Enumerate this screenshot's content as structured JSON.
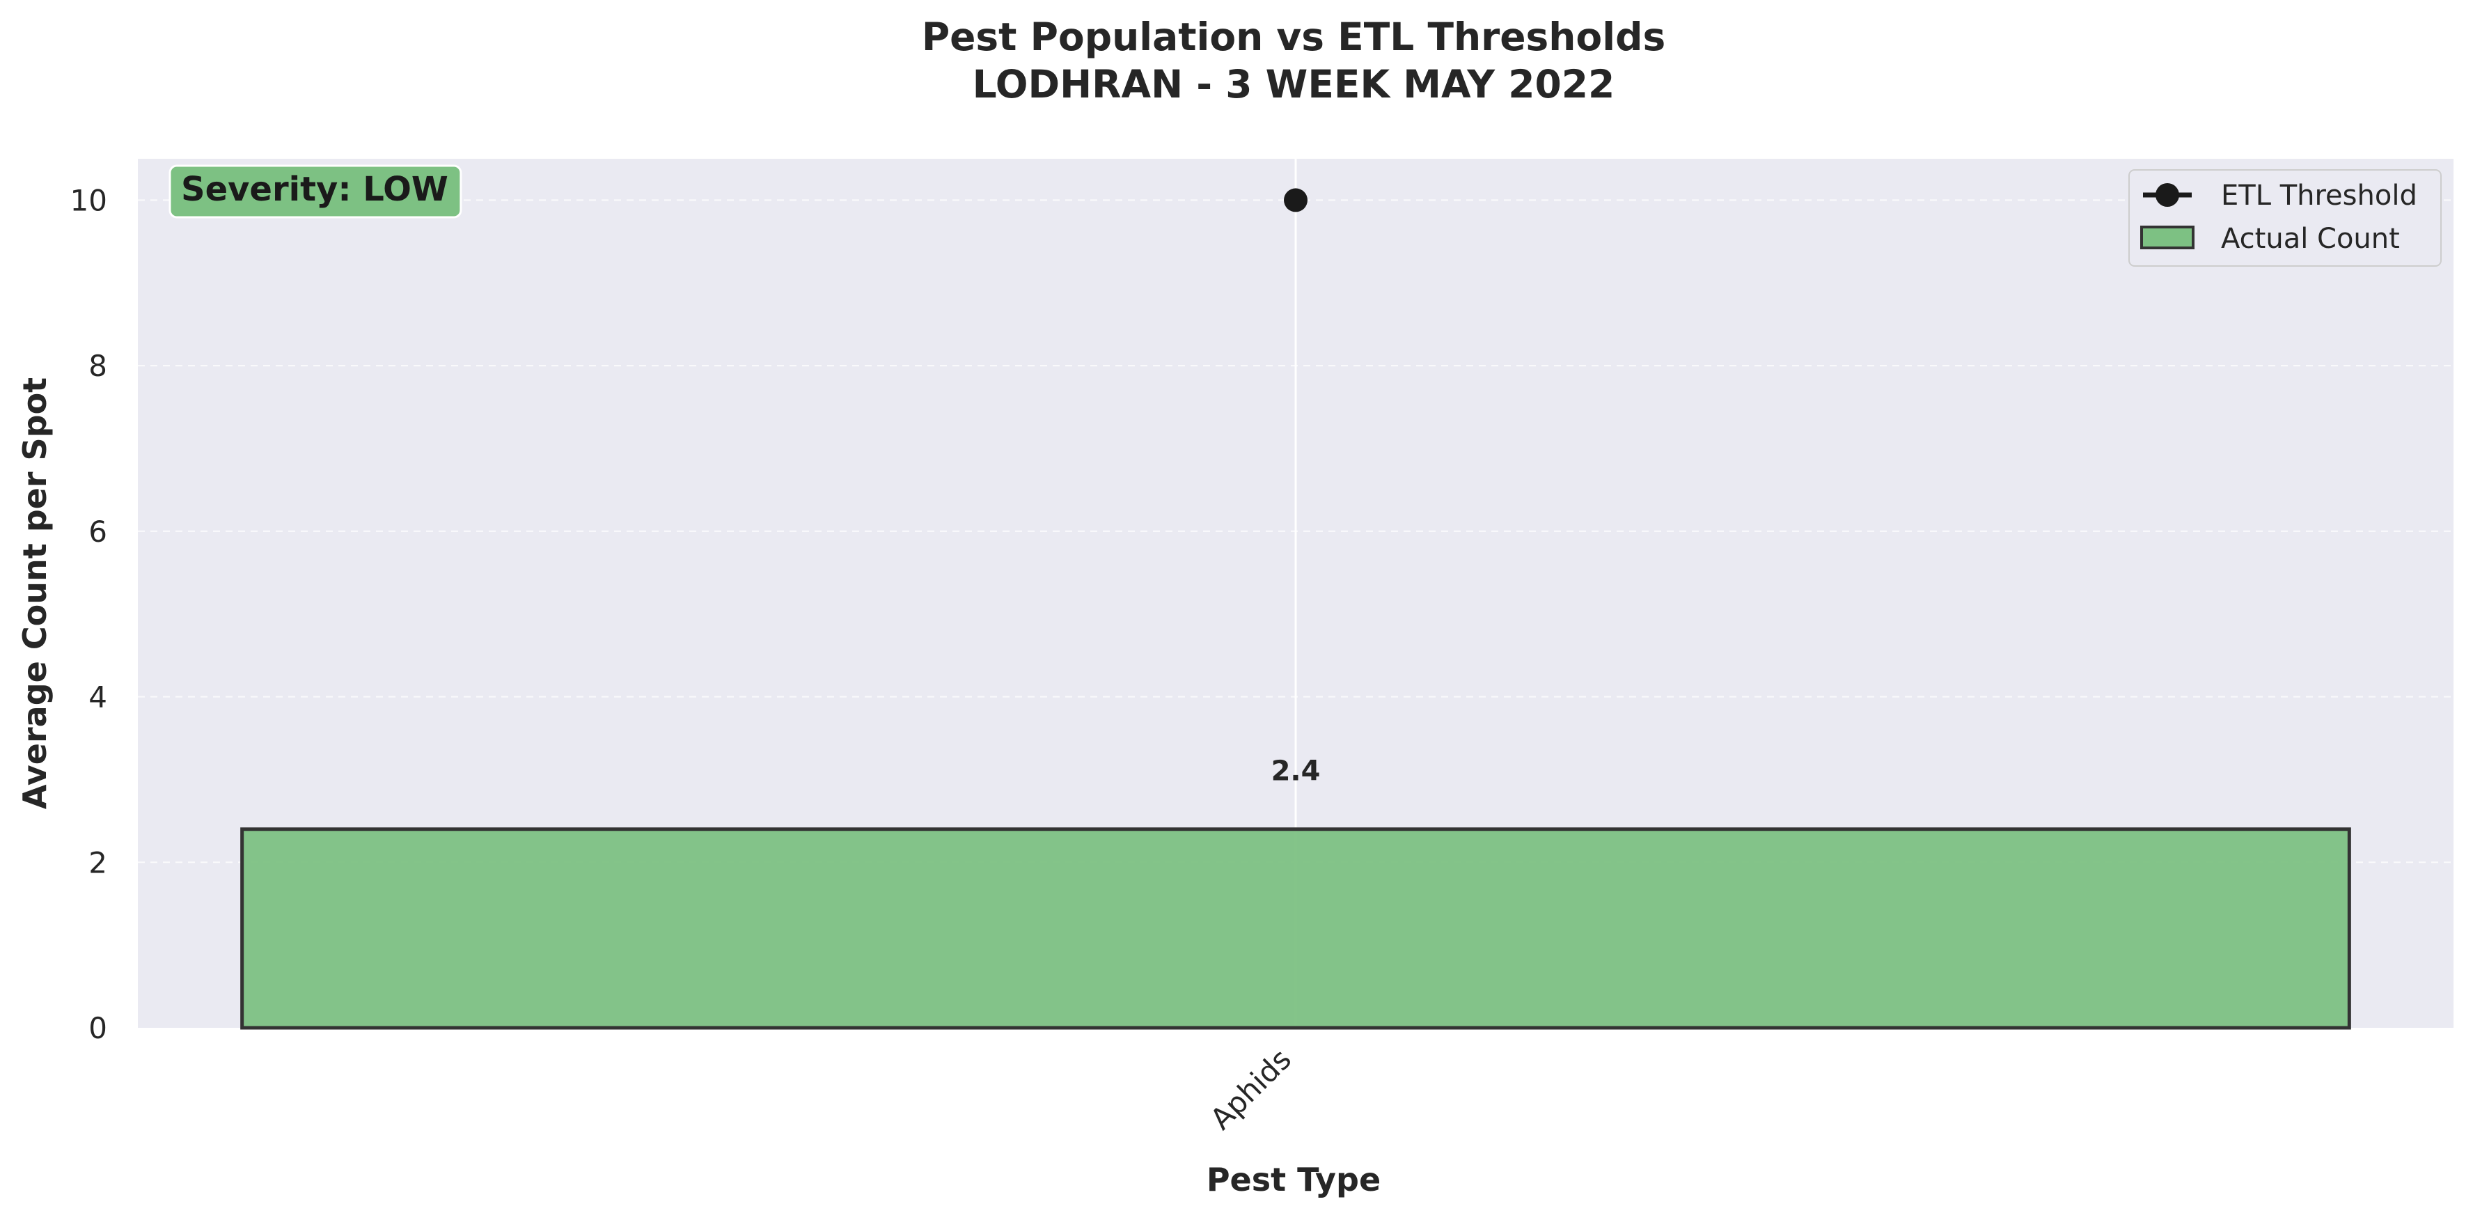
{
  "chart_data": {
    "type": "bar",
    "title": "Pest Population vs ETL Thresholds",
    "subtitle": "LODHRAN - 3 WEEK MAY 2022",
    "xlabel": "Pest Type",
    "ylabel": "Average Count per Spot",
    "categories": [
      "Aphids"
    ],
    "series": [
      {
        "name": "Actual Count",
        "values": [
          2.4
        ],
        "color": "#7dc183",
        "kind": "bar"
      },
      {
        "name": "ETL Threshold",
        "values": [
          10
        ],
        "color": "#1a1a1a",
        "kind": "marker"
      }
    ],
    "data_labels": [
      "2.4"
    ],
    "ylim": [
      0,
      10.5
    ],
    "yticks": [
      0,
      2,
      4,
      6,
      8,
      10
    ],
    "grid": true,
    "legend_position": "top-right",
    "annotation": {
      "text": "Severity: LOW",
      "position": "top-left",
      "color": "#7dc183"
    },
    "colors": {
      "plot_background": "#eaeaf2",
      "grid": "#ffffff",
      "bar_edge": "#333333"
    }
  }
}
